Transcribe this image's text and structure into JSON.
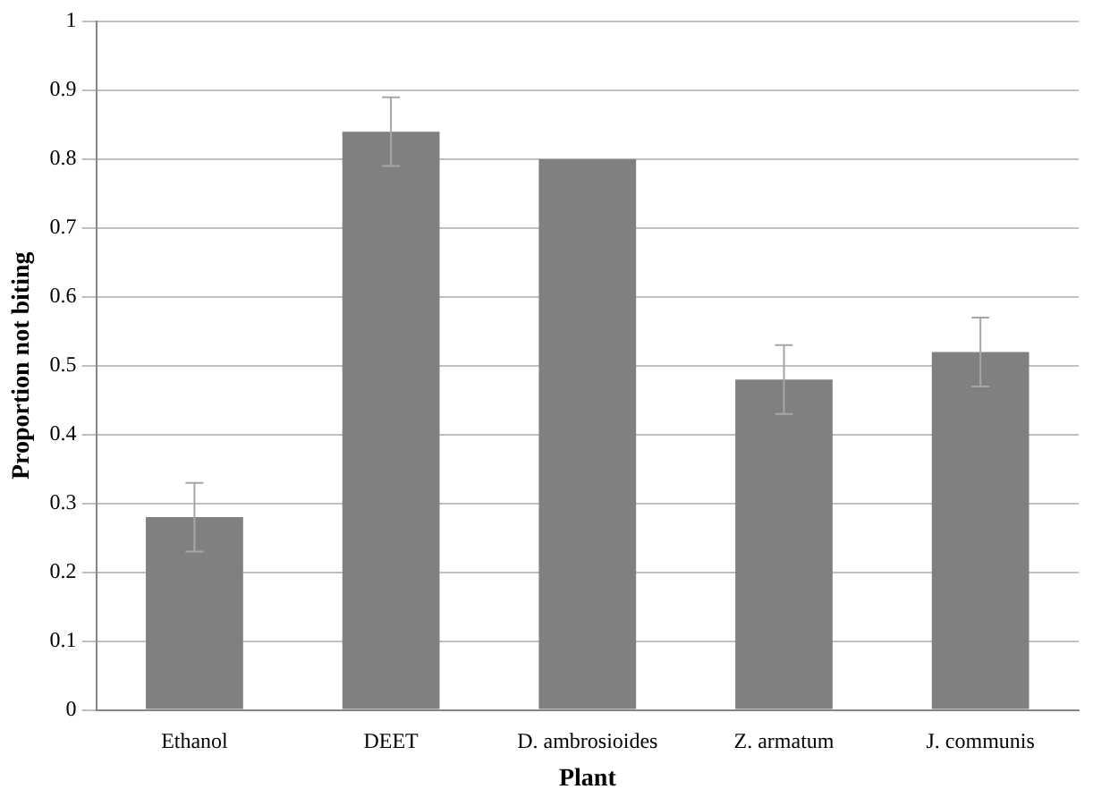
{
  "chart_data": {
    "type": "bar",
    "xlabel": "Plant",
    "ylabel": "Proportion not biting",
    "categories": [
      "Ethanol",
      "DEET",
      "D. ambrosioides",
      "Z. armatum",
      "J. communis"
    ],
    "values": [
      0.28,
      0.84,
      0.8,
      0.48,
      0.52
    ],
    "errors": [
      0.05,
      0.05,
      null,
      0.05,
      0.05
    ],
    "color": "#808080",
    "ylim": [
      0,
      1
    ],
    "yticks": [
      0,
      0.1,
      0.2,
      0.3,
      0.4,
      0.5,
      0.6,
      0.7,
      0.8,
      0.9,
      1
    ],
    "grid": "y",
    "legend": false
  }
}
